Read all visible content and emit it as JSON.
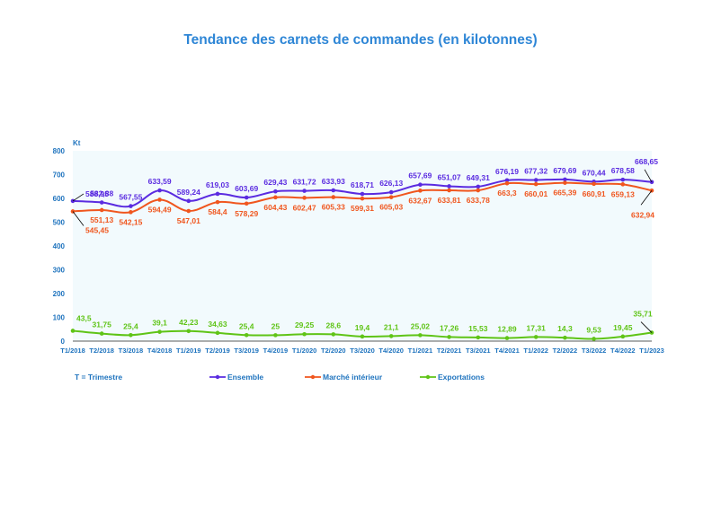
{
  "chart_data": {
    "type": "line",
    "title": "Tendance des carnets de commandes (en kilotonnes)",
    "ylabel": "Kt",
    "note": "T = Trimestre",
    "ylim": [
      0,
      800
    ],
    "yticks": [
      0,
      100,
      200,
      300,
      400,
      500,
      600,
      700,
      800
    ],
    "grid": false,
    "legend_position": "bottom",
    "categories": [
      "T1/2018",
      "T2/2018",
      "T3/2018",
      "T4/2018",
      "T1/2019",
      "T2/2019",
      "T3/2019",
      "T4/2019",
      "T1/2020",
      "T2/2020",
      "T3/2020",
      "T4/2020",
      "T1/2021",
      "T2/2021",
      "T3/2021",
      "T4/2021",
      "T1/2022",
      "T2/2022",
      "T3/2022",
      "T4/2022",
      "T1/2023"
    ],
    "series": [
      {
        "name": "Ensemble",
        "color": "#5a2be0",
        "values": [
          588.95,
          582.88,
          567.55,
          633.59,
          589.24,
          619.03,
          603.69,
          629.43,
          631.72,
          633.93,
          618.71,
          626.13,
          657.69,
          651.07,
          649.31,
          676.19,
          677.32,
          679.69,
          670.44,
          678.58,
          668.65
        ],
        "labels": [
          "588,95",
          "582,88",
          "567,55",
          "633,59",
          "589,24",
          "619,03",
          "603,69",
          "629,43",
          "631,72",
          "633,93",
          "618,71",
          "626,13",
          "657,69",
          "651,07",
          "649,31",
          "676,19",
          "677,32",
          "679,69",
          "670,44",
          "678,58",
          "668,65"
        ]
      },
      {
        "name": "Marché  intérieur",
        "color": "#f0561e",
        "values": [
          545.45,
          551.13,
          542.15,
          594.49,
          547.01,
          584.4,
          578.29,
          604.43,
          602.47,
          605.33,
          599.31,
          605.03,
          632.67,
          633.81,
          633.78,
          663.3,
          660.01,
          665.39,
          660.91,
          659.13,
          632.94
        ],
        "labels": [
          "545,45",
          "551,13",
          "542,15",
          "594,49",
          "547,01",
          "584,4",
          "578,29",
          "604,43",
          "602,47",
          "605,33",
          "599,31",
          "605,03",
          "632,67",
          "633,81",
          "633,78",
          "663,3",
          "660,01",
          "665,39",
          "660,91",
          "659,13",
          "632,94"
        ]
      },
      {
        "name": "Exportations",
        "color": "#5fc416",
        "values": [
          43.5,
          31.75,
          25.4,
          39.1,
          42.23,
          34.63,
          25.4,
          25,
          29.25,
          28.6,
          19.4,
          21.1,
          25.02,
          17.26,
          15.53,
          12.89,
          17.31,
          14.3,
          9.53,
          19.45,
          35.71
        ],
        "labels": [
          "43,5",
          "31,75",
          "25,4",
          "39,1",
          "42,23",
          "34,63",
          "25,4",
          "25",
          "29,25",
          "28,6",
          "19,4",
          "21,1",
          "25,02",
          "17,26",
          "15,53",
          "12,89",
          "17,31",
          "14,3",
          "9,53",
          "19,45",
          "35,71"
        ]
      }
    ]
  }
}
